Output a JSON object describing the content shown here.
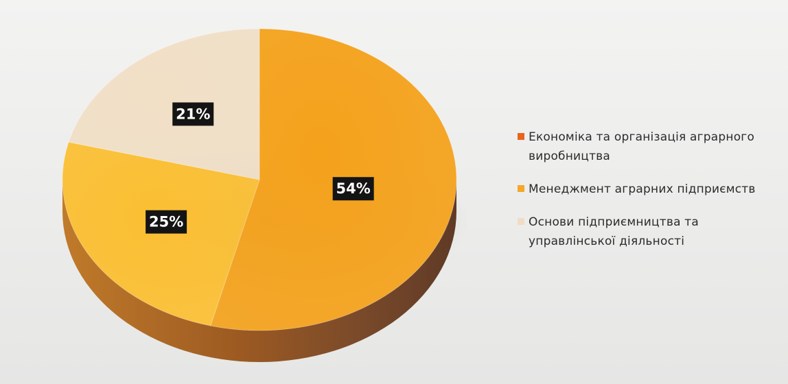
{
  "chart_data": {
    "type": "pie",
    "title": "",
    "series": [
      {
        "categories": [
          "Економіка та організація аграрного виробництва",
          "Менеджмент аграрних підприємств",
          "Основи підприємництва та управлінської діяльності"
        ],
        "values": [
          54,
          25,
          21
        ]
      }
    ],
    "data_labels": [
      "54%",
      "25%",
      "21%"
    ],
    "colors": [
      "#f4a21c",
      "#fbbf33",
      "#f1dfc6"
    ],
    "legend_colors": [
      "#e8641c",
      "#f4a82a",
      "#f0dcc6"
    ],
    "legend_position": "right",
    "style": "3d"
  },
  "legend": {
    "items": [
      {
        "text": "Економіка та організація аграрного виробництва",
        "color": "#e8641c"
      },
      {
        "text": "Менеджмент аграрних підприємств",
        "color": "#f4a82a"
      },
      {
        "text": "Основи підприємництва та управлінської діяльності",
        "color": "#f0dcc6"
      }
    ]
  }
}
